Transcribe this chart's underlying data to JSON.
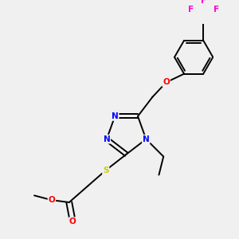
{
  "background_color": "#f0f0f0",
  "atom_colors": {
    "N": "#0000ff",
    "O": "#ff0000",
    "S": "#cccc00",
    "F": "#ff00cc"
  },
  "bond_color": "#000000",
  "lw": 1.4,
  "dbo": 0.045
}
